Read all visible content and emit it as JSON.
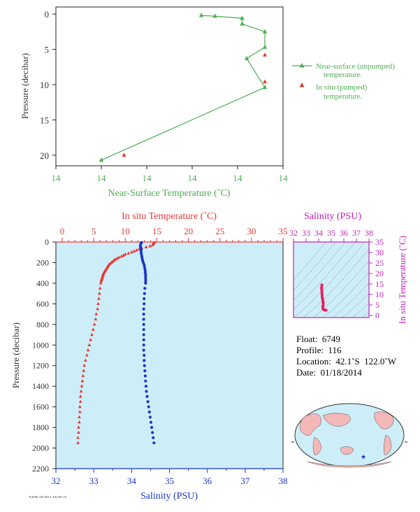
{
  "chart_data": [
    {
      "type": "line",
      "xlabel": "Near-Surface Temperature (˚C)",
      "ylabel": "Pressure (decibar)",
      "x_tick_labels": [
        "14",
        "14",
        "14",
        "14",
        "14",
        "14"
      ],
      "y_ticks": [
        0,
        5,
        10,
        15,
        20
      ],
      "ylim": [
        21.5,
        -1
      ],
      "legend_position": "right",
      "grid": false,
      "series": [
        {
          "name": "Near-surface (unpumped) temperature.",
          "color": "#4caf50",
          "marker": "triangle",
          "points": [
            [
              13.92,
              0.2
            ],
            [
              13.95,
              0.3
            ],
            [
              14.01,
              0.6
            ],
            [
              14.01,
              1.4
            ],
            [
              14.06,
              2.5
            ],
            [
              14.06,
              4.7
            ],
            [
              14.02,
              6.3
            ],
            [
              14.06,
              10.4
            ],
            [
              13.7,
              20.7
            ]
          ]
        },
        {
          "name": "In situ (pumped) temperature.",
          "color": "#e53935",
          "marker": "triangle",
          "points": [
            [
              14.06,
              5.8
            ],
            [
              14.06,
              9.6
            ],
            [
              13.75,
              20.0
            ]
          ]
        }
      ]
    },
    {
      "type": "scatter",
      "xlabel": "Salinity (PSU)",
      "ylabel": "Pressure (decibar)",
      "top_xlabel": "In situ Temperature (˚C)",
      "x_ticks": [
        32,
        33,
        34,
        35,
        36,
        37,
        38
      ],
      "top_x_ticks": [
        0,
        5,
        10,
        15,
        20,
        25,
        30,
        35
      ],
      "y_ticks": [
        0,
        200,
        400,
        600,
        800,
        1000,
        1200,
        1400,
        1600,
        1800,
        2000,
        2200
      ],
      "xlim": [
        32,
        38
      ],
      "top_xlim": [
        -1,
        35
      ],
      "ylim": [
        2200,
        0
      ],
      "grid": false,
      "series": [
        {
          "name": "temperature",
          "color": "#e53935",
          "marker": "triangle",
          "pressure": [
            5,
            10,
            20,
            30,
            40,
            50,
            60,
            70,
            80,
            90,
            100,
            110,
            120,
            130,
            140,
            150,
            160,
            170,
            180,
            190,
            200,
            210,
            220,
            230,
            240,
            250,
            260,
            270,
            280,
            290,
            300,
            310,
            320,
            330,
            340,
            350,
            360,
            370,
            380,
            400,
            450,
            500,
            550,
            600,
            650,
            700,
            750,
            800,
            850,
            900,
            950,
            1000,
            1050,
            1100,
            1150,
            1200,
            1250,
            1300,
            1350,
            1400,
            1450,
            1500,
            1550,
            1600,
            1650,
            1700,
            1750,
            1800,
            1850,
            1900,
            1950
          ],
          "values": [
            14.6,
            14.5,
            14.4,
            14.3,
            13.9,
            13.3,
            12.6,
            12.2,
            11.8,
            11.4,
            11.0,
            10.5,
            10.0,
            9.7,
            9.4,
            9.0,
            8.7,
            8.4,
            8.2,
            8.0,
            7.8,
            7.6,
            7.4,
            7.3,
            7.2,
            7.1,
            7.0,
            6.9,
            6.8,
            6.7,
            6.6,
            6.5,
            6.5,
            6.4,
            6.4,
            6.3,
            6.3,
            6.2,
            6.2,
            6.1,
            6.0,
            5.9,
            5.8,
            5.7,
            5.6,
            5.4,
            5.3,
            5.1,
            4.9,
            4.7,
            4.5,
            4.3,
            4.1,
            3.9,
            3.7,
            3.5,
            3.4,
            3.3,
            3.2,
            3.1,
            3.0,
            2.9,
            2.9,
            2.8,
            2.8,
            2.7,
            2.7,
            2.6,
            2.6,
            2.5,
            2.5
          ]
        },
        {
          "name": "salinity",
          "color": "#1a35c8",
          "marker": "circle",
          "pressure": [
            5,
            20,
            40,
            60,
            80,
            100,
            120,
            140,
            160,
            180,
            200,
            220,
            240,
            260,
            280,
            300,
            320,
            340,
            360,
            380,
            400,
            450,
            500,
            550,
            600,
            650,
            700,
            750,
            800,
            850,
            900,
            950,
            1000,
            1050,
            1100,
            1150,
            1200,
            1250,
            1300,
            1350,
            1400,
            1450,
            1500,
            1550,
            1600,
            1650,
            1700,
            1750,
            1800,
            1850,
            1900,
            1950
          ],
          "values": [
            34.26,
            34.24,
            34.23,
            34.25,
            34.25,
            34.25,
            34.26,
            34.27,
            34.28,
            34.29,
            34.31,
            34.33,
            34.34,
            34.35,
            34.36,
            34.36,
            34.37,
            34.37,
            34.37,
            34.37,
            34.37,
            34.35,
            34.34,
            34.33,
            34.33,
            34.32,
            34.32,
            34.32,
            34.32,
            34.32,
            34.32,
            34.32,
            34.32,
            34.32,
            34.33,
            34.33,
            34.34,
            34.35,
            34.36,
            34.37,
            34.38,
            34.39,
            34.41,
            34.43,
            34.45,
            34.47,
            34.49,
            34.51,
            34.53,
            34.55,
            34.57,
            34.59
          ]
        }
      ]
    },
    {
      "type": "scatter",
      "xlabel": "Salinity (PSU)",
      "ylabel": "In situ Temperature (˚C)",
      "x_ticks": [
        32,
        33,
        34,
        35,
        36,
        37,
        38
      ],
      "y_ticks": [
        0,
        5,
        10,
        15,
        20,
        25,
        30,
        35
      ],
      "xlim": [
        32,
        38
      ],
      "ylim": [
        -1,
        35
      ],
      "color": "#c2187a",
      "points_color": "#e91e63",
      "points": [
        [
          34.26,
          14.6
        ],
        [
          34.24,
          13.8
        ],
        [
          34.23,
          13.0
        ],
        [
          34.25,
          12.2
        ],
        [
          34.25,
          11.4
        ],
        [
          34.26,
          10.6
        ],
        [
          34.27,
          9.8
        ],
        [
          34.28,
          9.0
        ],
        [
          34.29,
          8.4
        ],
        [
          34.31,
          7.8
        ],
        [
          34.33,
          7.2
        ],
        [
          34.34,
          6.8
        ],
        [
          34.35,
          6.4
        ],
        [
          34.36,
          6.1
        ],
        [
          34.37,
          5.8
        ],
        [
          34.36,
          5.4
        ],
        [
          34.35,
          5.0
        ],
        [
          34.34,
          4.6
        ],
        [
          34.33,
          4.2
        ],
        [
          34.33,
          3.8
        ],
        [
          34.34,
          3.4
        ],
        [
          34.36,
          3.0
        ],
        [
          34.4,
          2.8
        ],
        [
          34.45,
          2.7
        ],
        [
          34.5,
          2.6
        ],
        [
          34.55,
          2.5
        ],
        [
          34.59,
          2.5
        ]
      ]
    }
  ],
  "legend": {
    "near_surface": [
      "Near-surface (unpumped)",
      "temperature."
    ],
    "in_situ": [
      "In situ (pumped)",
      "temperature."
    ]
  },
  "info": {
    "float": "Float:  6749",
    "profile": "Profile:  116",
    "location": "Location:  42.1˚S  122.0˚W",
    "date": "Date:  01/18/2014"
  },
  "footer_code": "P2006  2014013  20140119",
  "colors": {
    "green": "#4caf50",
    "red": "#e53935",
    "blue": "#1a35c8",
    "magenta": "#c020b8",
    "pink": "#e91e63",
    "panel_bg": "#cdeef8",
    "axis_text": "#333333"
  }
}
